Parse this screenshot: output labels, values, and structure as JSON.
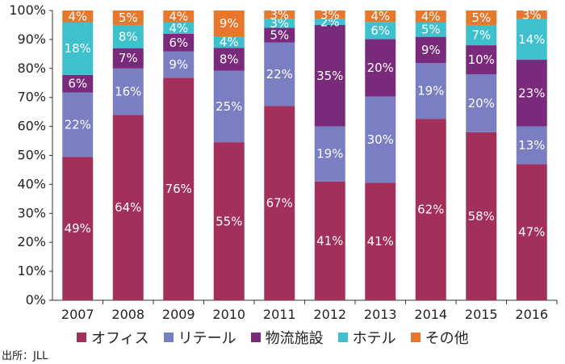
{
  "chart_data": {
    "type": "bar",
    "stacked": true,
    "categories": [
      "2007",
      "2008",
      "2009",
      "2010",
      "2011",
      "2012",
      "2013",
      "2014",
      "2015",
      "2016"
    ],
    "series": [
      {
        "name": "オフィス",
        "color": "#A2305A",
        "label_color": "#ffffff",
        "values": [
          49,
          64,
          76,
          55,
          67,
          41,
          41,
          62,
          58,
          47
        ]
      },
      {
        "name": "リテール",
        "color": "#7A7FC4",
        "label_color": "#ffffff",
        "values": [
          22,
          16,
          9,
          25,
          22,
          19,
          30,
          19,
          20,
          13
        ]
      },
      {
        "name": "物流施設",
        "color": "#7A2A7A",
        "label_color": "#ffffff",
        "values": [
          6,
          7,
          6,
          8,
          5,
          35,
          20,
          9,
          10,
          23
        ]
      },
      {
        "name": "ホテル",
        "color": "#3EC1CC",
        "label_color": "#ffffff",
        "values": [
          18,
          8,
          4,
          4,
          3,
          2,
          6,
          5,
          7,
          14
        ]
      },
      {
        "name": "その他",
        "color": "#E8772E",
        "label_color": "#ffffff",
        "values": [
          4,
          5,
          4,
          9,
          3,
          3,
          4,
          4,
          5,
          3
        ]
      }
    ],
    "labels": [
      [
        "49%",
        "64%",
        "76%",
        "55%",
        "67%",
        "41%",
        "41%",
        "62%",
        "58%",
        "47%"
      ],
      [
        "22%",
        "16%",
        "9%",
        "25%",
        "22%",
        "19%",
        "30%",
        "19%",
        "20%",
        "13%"
      ],
      [
        "6%",
        "7%",
        "6%",
        "8%",
        "5%",
        "35%",
        "20%",
        "9%",
        "10%",
        "23%"
      ],
      [
        "18%",
        "8%",
        "4%",
        "4%",
        "3%",
        "2%",
        "6%",
        "5%",
        "7%",
        "14%"
      ],
      [
        "4%",
        "5%",
        "4%",
        "9%",
        "3%",
        "3%",
        "4%",
        "4%",
        "5%",
        "3%"
      ]
    ],
    "y_ticks": [
      "0%",
      "10%",
      "20%",
      "30%",
      "40%",
      "50%",
      "60%",
      "70%",
      "80%",
      "90%",
      "100%"
    ],
    "ylim": [
      0,
      100
    ],
    "grid": false,
    "legend_position": "bottom"
  },
  "source": "出所：JLL"
}
